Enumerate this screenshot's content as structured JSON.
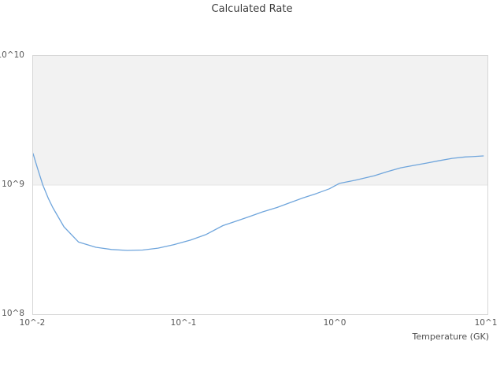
{
  "chart_data": {
    "type": "line",
    "title": "Calculated Rate",
    "xlabel": "Temperature (GK)",
    "ylabel": "",
    "x_scale": "log",
    "y_scale": "log",
    "xlim": [
      0.01,
      10.12
    ],
    "ylim": [
      100000000.0,
      10000000000.0
    ],
    "grid": "none",
    "legend": "none",
    "x_ticks": [
      {
        "t": 0.01,
        "label": "10^-2"
      },
      {
        "t": 0.1,
        "label": "10^-1"
      },
      {
        "t": 1,
        "label": "10^0"
      },
      {
        "t": 10,
        "label": "10^1"
      }
    ],
    "y_ticks": [
      {
        "v": 100000000.0,
        "label": "10^8"
      },
      {
        "v": 1000000000.0,
        "label": "10^9"
      },
      {
        "v": 10000000000.0,
        "label": "10^10"
      }
    ],
    "background_band": {
      "from": 1000000000.0,
      "to": 10000000000.0,
      "fill": "#f2f2f2",
      "edge": "#e4e4e4"
    },
    "line_color": "#6FA5DC",
    "series": [
      {
        "name": "Calculated Rate",
        "points": [
          [
            0.01,
            1750000000.0
          ],
          [
            0.0107,
            1350000000.0
          ],
          [
            0.0116,
            1000000000.0
          ],
          [
            0.0126,
            790000000.0
          ],
          [
            0.0135,
            670000000.0
          ],
          [
            0.016,
            475000000.0
          ],
          [
            0.02,
            362000000.0
          ],
          [
            0.026,
            330000000.0
          ],
          [
            0.033,
            317000000.0
          ],
          [
            0.042,
            312000000.0
          ],
          [
            0.053,
            314000000.0
          ],
          [
            0.067,
            325000000.0
          ],
          [
            0.085,
            345000000.0
          ],
          [
            0.11,
            375000000.0
          ],
          [
            0.14,
            415000000.0
          ],
          [
            0.18,
            485000000.0
          ],
          [
            0.22,
            525000000.0
          ],
          [
            0.27,
            570000000.0
          ],
          [
            0.33,
            620000000.0
          ],
          [
            0.41,
            670000000.0
          ],
          [
            0.5,
            730000000.0
          ],
          [
            0.6,
            790000000.0
          ],
          [
            0.75,
            860000000.0
          ],
          [
            0.91,
            935000000.0
          ],
          [
            1.06,
            1030000000.0
          ],
          [
            1.35,
            1090000000.0
          ],
          [
            1.8,
            1180000000.0
          ],
          [
            2.2,
            1270000000.0
          ],
          [
            2.7,
            1360000000.0
          ],
          [
            3.3,
            1420000000.0
          ],
          [
            4.0,
            1480000000.0
          ],
          [
            4.8,
            1540000000.0
          ],
          [
            5.9,
            1610000000.0
          ],
          [
            7.2,
            1650000000.0
          ],
          [
            8.0,
            1660000000.0
          ],
          [
            9.5,
            1680000000.0
          ]
        ]
      }
    ]
  },
  "colors": {
    "background": "#ffffff",
    "plot_border": "#d7d7d7",
    "band_fill": "#f2f2f2",
    "band_edge": "#e4e4e4",
    "line": "#6FA5DC",
    "tick_text": "#565656",
    "title_text": "#3c3c3c"
  }
}
